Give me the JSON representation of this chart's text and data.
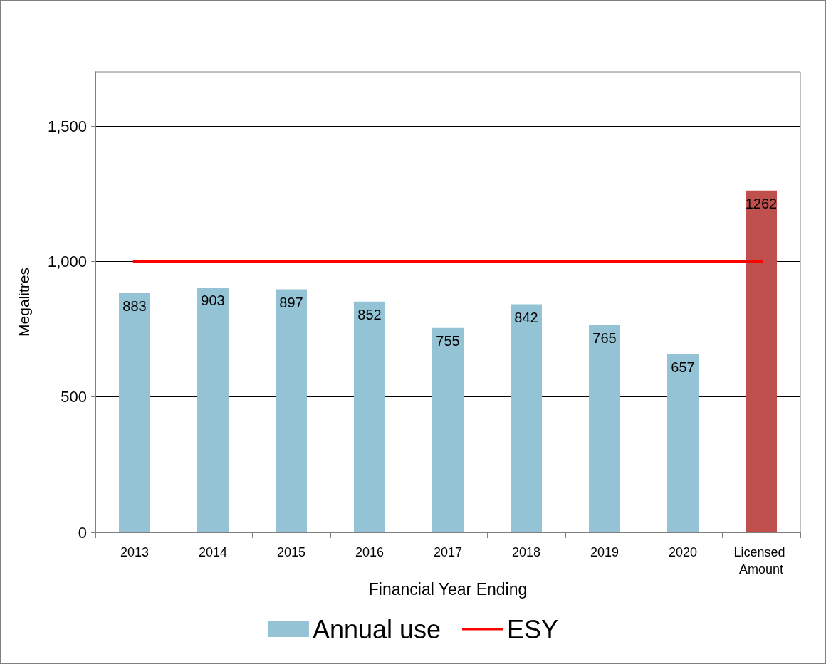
{
  "chart_data": {
    "type": "bar",
    "xlabel": "Financial Year Ending",
    "ylabel": "Megalitres",
    "categories": [
      "2013",
      "2014",
      "2015",
      "2016",
      "2017",
      "2018",
      "2019",
      "2020",
      "Licensed Amount"
    ],
    "series": [
      {
        "name": "Annual use",
        "color": "#93c3d5",
        "value_labels": [
          "883",
          "903",
          "897",
          "852",
          "755",
          "842",
          "765",
          "657",
          "1262"
        ],
        "colors": [
          "#93c3d5",
          "#93c3d5",
          "#93c3d5",
          "#93c3d5",
          "#93c3d5",
          "#93c3d5",
          "#93c3d5",
          "#93c3d5",
          "#c0504d"
        ],
        "values": [
          883,
          903,
          897,
          852,
          755,
          842,
          765,
          657,
          1262
        ]
      },
      {
        "name": "ESY",
        "type": "line",
        "color": "#ff0000",
        "values": [
          1000,
          1000,
          1000,
          1000,
          1000,
          1000,
          1000,
          1000,
          1000
        ]
      }
    ],
    "ylim": [
      0,
      1700
    ],
    "yticks": [
      0,
      500,
      {
        "value": 1000,
        "label": "1,000"
      },
      {
        "value": 1500,
        "label": "1,500"
      }
    ],
    "grid": "y",
    "legend": "bottom",
    "marker": "none"
  }
}
